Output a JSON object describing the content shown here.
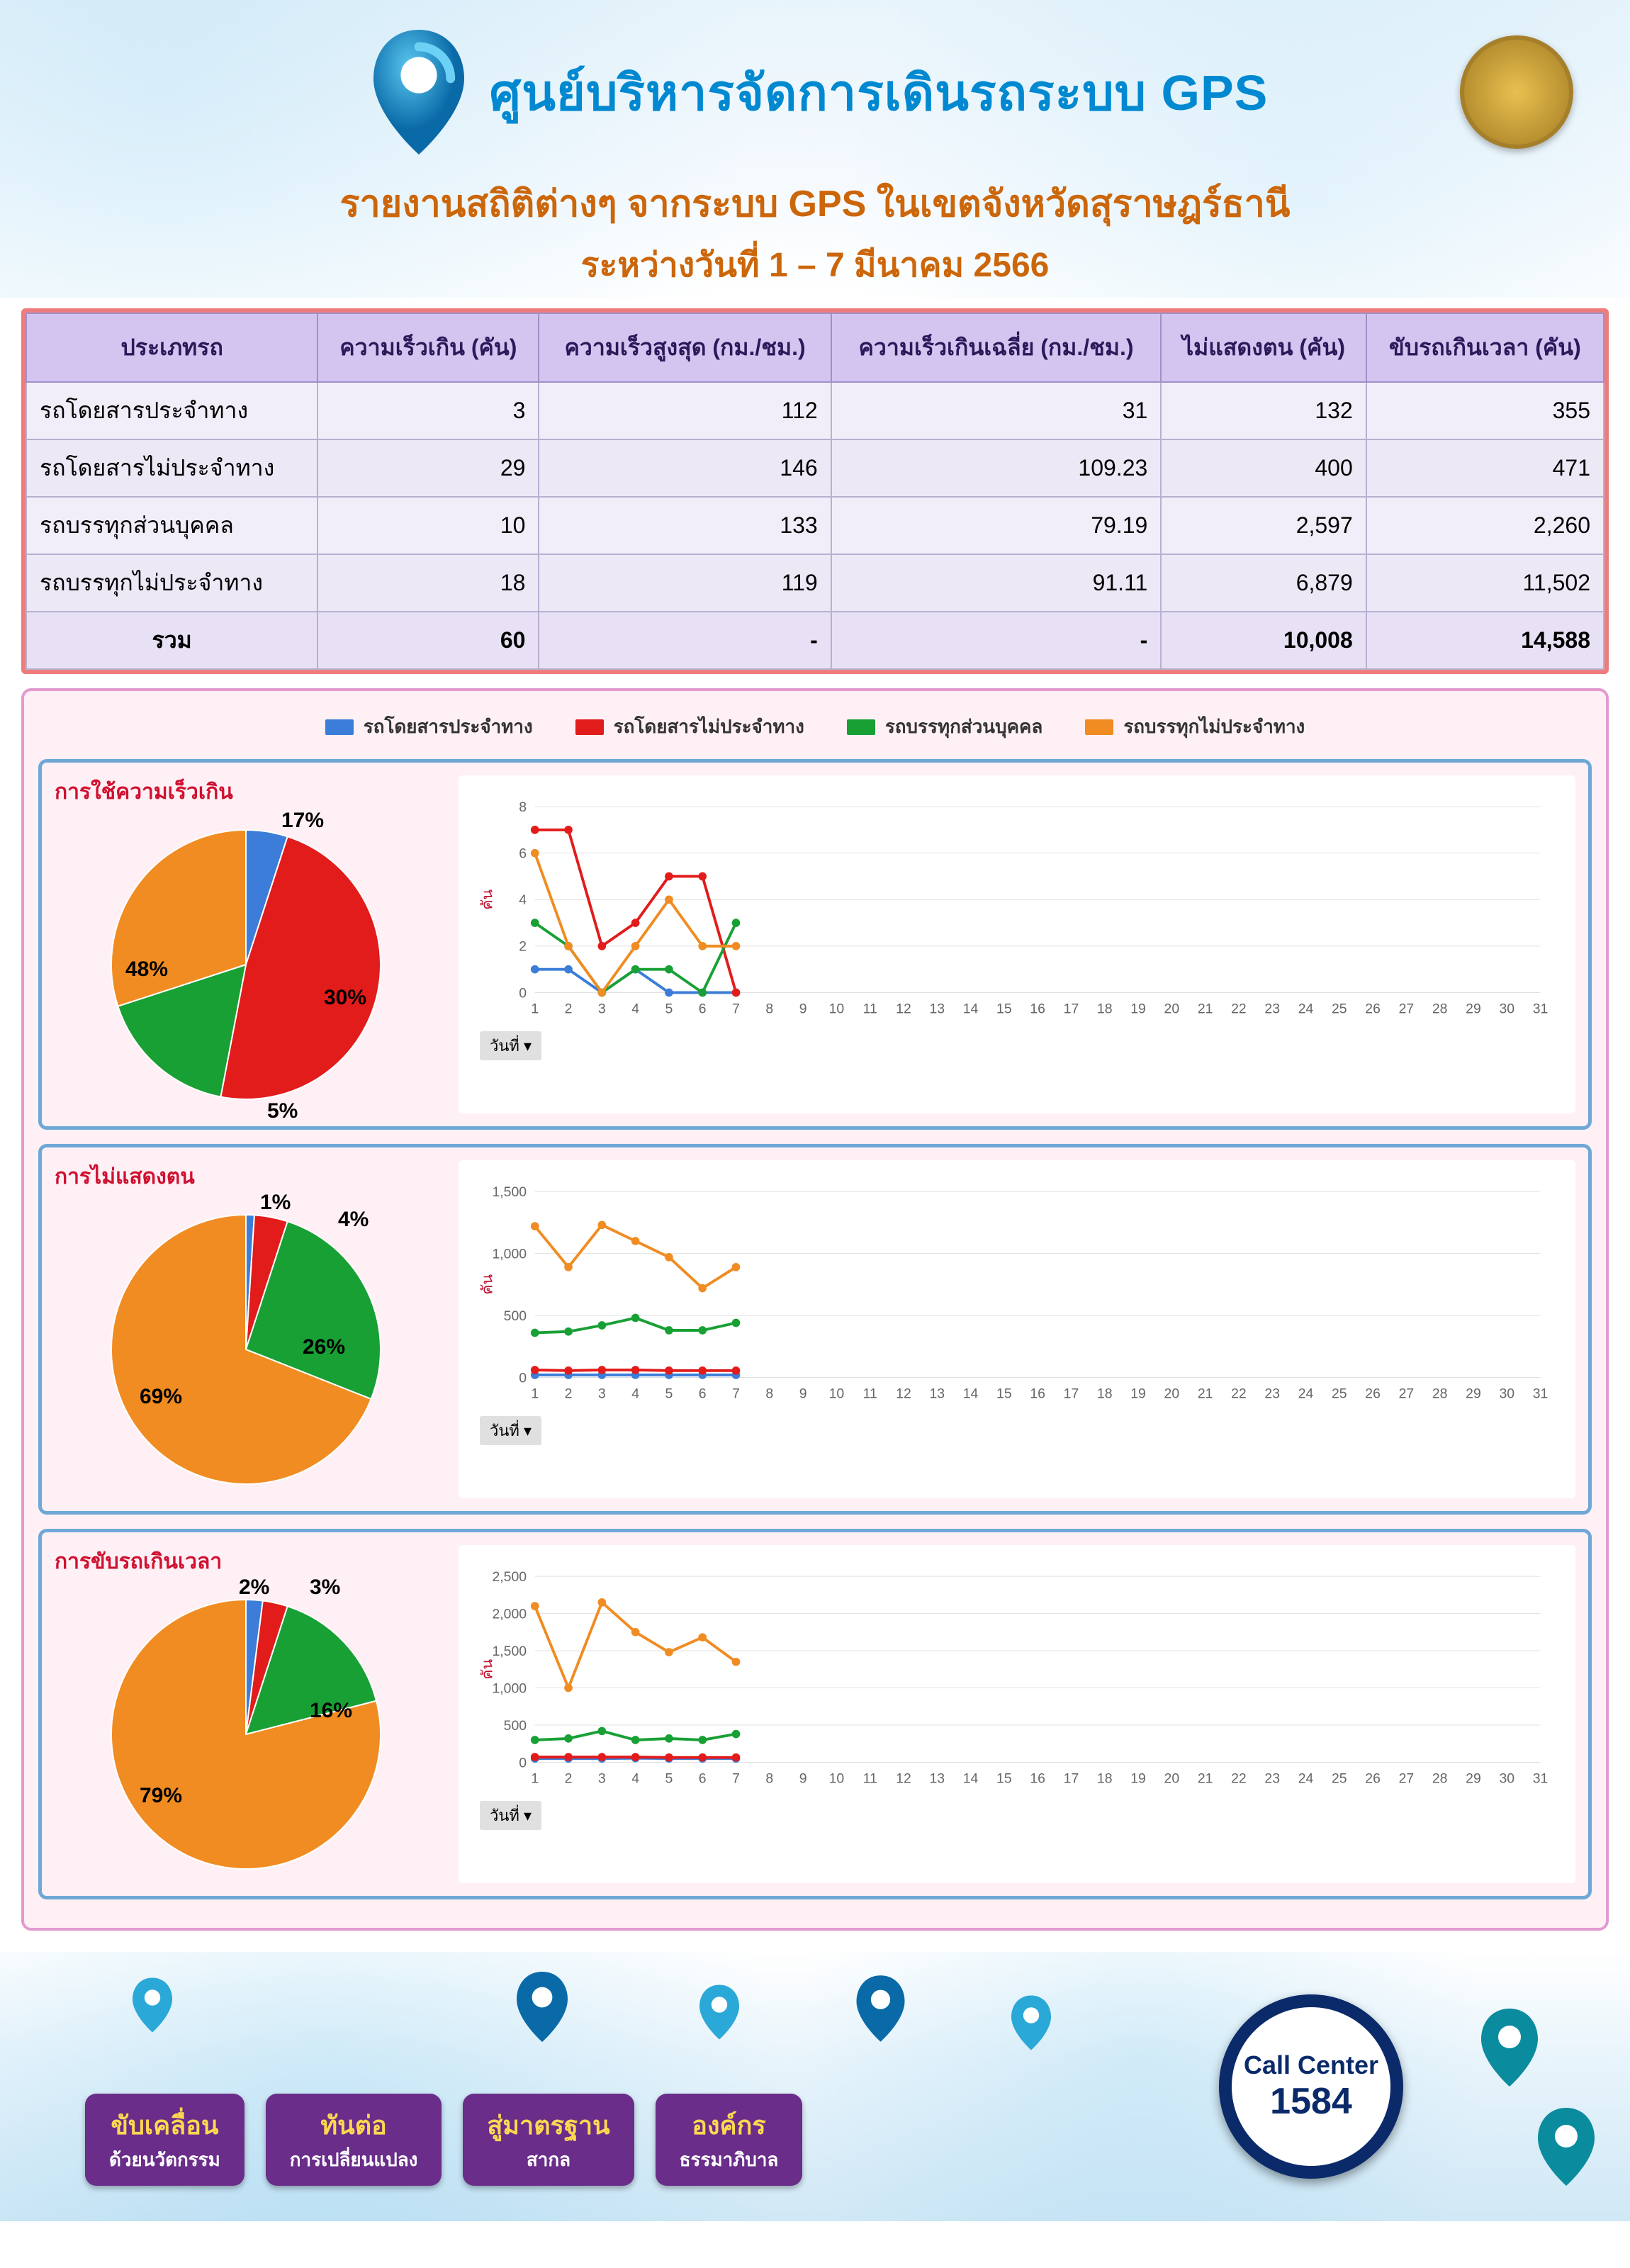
{
  "header": {
    "title_main": "ศูนย์บริหารจัดการเดินรถระบบ GPS",
    "subtitle1": "รายงานสถิติต่างๆ จากระบบ GPS ในเขตจังหวัดสุราษฎร์ธานี",
    "subtitle2": "ระหว่างวันที่ 1 – 7 มีนาคม 2566",
    "title_color": "#0089d0",
    "subtitle_color": "#cc660a",
    "title_fontsize": 70,
    "subtitle_fontsize": 52
  },
  "table": {
    "border_color": "#ef7c7c",
    "header_bg": "#d4c4f0",
    "cell_bg": "#f2eef9",
    "columns": [
      "ประเภทรถ",
      "ความเร็วเกิน (คัน)",
      "ความเร็วสูงสุด (กม./ชม.)",
      "ความเร็วเกินเฉลี่ย (กม./ชม.)",
      "ไม่แสดงตน (คัน)",
      "ขับรถเกินเวลา (คัน)"
    ],
    "rows": [
      {
        "label": "รถโดยสารประจำทาง",
        "v": [
          "3",
          "112",
          "31",
          "132",
          "355"
        ]
      },
      {
        "label": "รถโดยสารไม่ประจำทาง",
        "v": [
          "29",
          "146",
          "109.23",
          "400",
          "471"
        ]
      },
      {
        "label": "รถบรรทุกส่วนบุคคล",
        "v": [
          "10",
          "133",
          "79.19",
          "2,597",
          "2,260"
        ]
      },
      {
        "label": "รถบรรทุกไม่ประจำทาง",
        "v": [
          "18",
          "119",
          "91.11",
          "6,879",
          "11,502"
        ]
      }
    ],
    "total": {
      "label": "รวม",
      "v": [
        "60",
        "-",
        "-",
        "10,008",
        "14,588"
      ]
    }
  },
  "series": {
    "names": [
      "รถโดยสารประจำทาง",
      "รถโดยสารไม่ประจำทาง",
      "รถบรรทุกส่วนบุคคล",
      "รถบรรทุกไม่ประจำทาง"
    ],
    "colors": [
      "#3b7dd8",
      "#e21b1b",
      "#18a035",
      "#f08c22"
    ]
  },
  "panels": [
    {
      "title": "การใช้ความเร็วเกิน",
      "pie": {
        "slices": [
          {
            "pct": 5,
            "color": "#3b7dd8",
            "label": "5%",
            "lx": 240,
            "ly": 400
          },
          {
            "pct": 48,
            "color": "#e21b1b",
            "label": "48%",
            "lx": 40,
            "ly": 200
          },
          {
            "pct": 17,
            "color": "#18a035",
            "label": "17%",
            "lx": 260,
            "ly": -10
          },
          {
            "pct": 30,
            "color": "#f08c22",
            "label": "30%",
            "lx": 320,
            "ly": 240
          }
        ]
      },
      "line": {
        "ymax": 8,
        "ystep": 2,
        "ylabel": "คัน",
        "x": [
          1,
          2,
          3,
          4,
          5,
          6,
          7
        ],
        "xlabel": "วันที่ ▾",
        "series": [
          [
            1,
            1,
            0,
            1,
            0,
            0,
            0
          ],
          [
            7,
            7,
            2,
            3,
            5,
            5,
            0
          ],
          [
            3,
            2,
            0,
            1,
            1,
            0,
            3
          ],
          [
            6,
            2,
            0,
            2,
            4,
            2,
            2
          ]
        ]
      }
    },
    {
      "title": "การไม่แสดงตน",
      "pie": {
        "slices": [
          {
            "pct": 1,
            "color": "#3b7dd8",
            "label": "1%",
            "lx": 230,
            "ly": -14
          },
          {
            "pct": 4,
            "color": "#e21b1b",
            "label": "4%",
            "lx": 340,
            "ly": 10
          },
          {
            "pct": 26,
            "color": "#18a035",
            "label": "26%",
            "lx": 290,
            "ly": 190
          },
          {
            "pct": 69,
            "color": "#f08c22",
            "label": "69%",
            "lx": 60,
            "ly": 260
          }
        ]
      },
      "line": {
        "ymax": 1500,
        "ystep": 500,
        "ylabel": "คัน",
        "x": [
          1,
          2,
          3,
          4,
          5,
          6,
          7
        ],
        "xlabel": "วันที่ ▾",
        "series": [
          [
            20,
            20,
            20,
            20,
            20,
            20,
            20
          ],
          [
            60,
            55,
            60,
            60,
            55,
            55,
            55
          ],
          [
            360,
            370,
            420,
            480,
            380,
            380,
            440
          ],
          [
            1220,
            890,
            1230,
            1100,
            970,
            720,
            890
          ]
        ]
      }
    },
    {
      "title": "การขับรถเกินเวลา",
      "pie": {
        "slices": [
          {
            "pct": 2,
            "color": "#3b7dd8",
            "label": "2%",
            "lx": 200,
            "ly": -14
          },
          {
            "pct": 3,
            "color": "#e21b1b",
            "label": "3%",
            "lx": 300,
            "ly": -14
          },
          {
            "pct": 16,
            "color": "#18a035",
            "label": "16%",
            "lx": 300,
            "ly": 160
          },
          {
            "pct": 79,
            "color": "#f08c22",
            "label": "79%",
            "lx": 60,
            "ly": 280
          }
        ]
      },
      "line": {
        "ymax": 2500,
        "ystep": 500,
        "ylabel": "คัน",
        "x": [
          1,
          2,
          3,
          4,
          5,
          6,
          7
        ],
        "xlabel": "วันที่ ▾",
        "series": [
          [
            50,
            50,
            50,
            55,
            50,
            50,
            50
          ],
          [
            70,
            70,
            70,
            70,
            65,
            65,
            65
          ],
          [
            300,
            320,
            420,
            300,
            320,
            300,
            380
          ],
          [
            2100,
            1000,
            2150,
            1750,
            1480,
            1680,
            1350
          ]
        ]
      }
    }
  ],
  "footer": {
    "buttons": [
      {
        "l1": "ขับเคลื่อน",
        "l2": "ด้วยนวัตกรรม"
      },
      {
        "l1": "ทันต่อ",
        "l2": "การเปลี่ยนแปลง"
      },
      {
        "l1": "สู่มาตรฐาน",
        "l2": "สากล"
      },
      {
        "l1": "องค์กร",
        "l2": "ธรรมาภิบาล"
      }
    ],
    "call_center": {
      "l1": "Call Center",
      "l2": "1584"
    },
    "btn_bg": "#6a2d8a",
    "btn_accent": "#ffd850",
    "cc_border": "#0a2a6a"
  },
  "chart_style": {
    "panel_border": "#6fa8d6",
    "panels_bg": "#fff0f5",
    "outer_border": "#e39ad0",
    "grid_color": "#e0e0e0",
    "axis_color": "#888888",
    "tick_fontsize": 20,
    "title_color": "#d01030",
    "line_width": 4,
    "marker_radius": 6,
    "x_full": [
      1,
      2,
      3,
      4,
      5,
      6,
      7,
      8,
      9,
      10,
      11,
      12,
      13,
      14,
      15,
      16,
      17,
      18,
      19,
      20,
      21,
      22,
      23,
      24,
      25,
      26,
      27,
      28,
      29,
      30,
      31
    ]
  }
}
